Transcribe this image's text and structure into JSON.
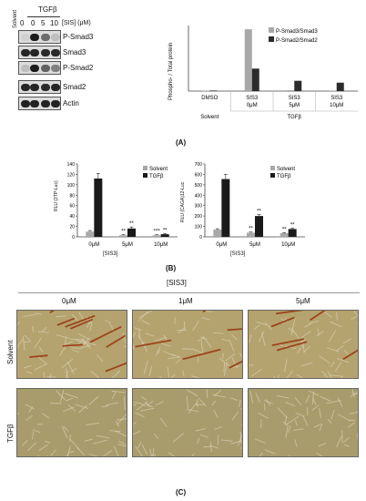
{
  "panelA": {
    "western": {
      "solvent_label": "Solvent",
      "tgf_label": "TGFβ",
      "conc_header": "[SIS] (μM)",
      "lane_values": [
        "0",
        "0",
        "5",
        "10"
      ],
      "markers": [
        "P-Smad3",
        "Smad3",
        "P-Smad2",
        "Smad2",
        "Actin"
      ],
      "band_intensity": [
        [
          0.05,
          0.95,
          0.55,
          0.15
        ],
        [
          0.9,
          0.9,
          0.88,
          0.88
        ],
        [
          0.15,
          0.95,
          0.6,
          0.45
        ],
        [
          0.9,
          0.9,
          0.88,
          0.9
        ],
        [
          0.92,
          0.92,
          0.92,
          0.92
        ]
      ]
    },
    "label": "(A)"
  },
  "panelB": {
    "label": "(B)",
    "conc_footer": "[SIS3]"
  },
  "panelC": {
    "header": "[SIS3]",
    "columns": [
      "0μM",
      "1μM",
      "5μM"
    ],
    "rows": [
      "Solvent",
      "TGFβ"
    ],
    "label": "(C)"
  },
  "chart_data": [
    {
      "type": "bar",
      "ylabel": "Phospho- / Total protein",
      "categories": [
        "DMSO",
        "SIS3 0μM",
        "SIS3 5μM",
        "SIS3 10μM"
      ],
      "groups": [
        "Solvent",
        "TGFβ"
      ],
      "series": [
        {
          "name": "P-Smad3/Smad3",
          "values": [
            0.02,
            3.3,
            0.05,
            0.03
          ],
          "color": "#a8a8a8"
        },
        {
          "name": "P-Smad2/Smad2",
          "values": [
            0.03,
            1.2,
            0.55,
            0.45
          ],
          "color": "#2b2b2b"
        }
      ],
      "ylim": [
        0,
        3.5
      ],
      "legend": "top-right"
    },
    {
      "type": "bar",
      "ylabel": "RLU (3TP-Luc)",
      "categories": [
        "0μM",
        "5μM",
        "10μM"
      ],
      "xlabel": "[SIS3]",
      "y_ticks": [
        "0",
        "20",
        "40",
        "60",
        "80",
        "100",
        "120",
        "140"
      ],
      "ylim": [
        0,
        140
      ],
      "series": [
        {
          "name": "Solvent",
          "values": [
            10,
            3,
            3
          ],
          "errors": [
            2,
            1,
            1
          ],
          "color": "#a8a8a8"
        },
        {
          "name": "TGFβ",
          "values": [
            112,
            16,
            5
          ],
          "errors": [
            10,
            3,
            1
          ],
          "color": "#1a1a1a"
        }
      ],
      "annotations": [
        "**",
        "**",
        "***",
        "**"
      ],
      "legend": "top-right"
    },
    {
      "type": "bar",
      "ylabel": "RLU (CAGA)12-Luc",
      "categories": [
        "0μM",
        "5μM",
        "10μM"
      ],
      "xlabel": "[SIS3]",
      "y_ticks": [
        "0",
        "100",
        "200",
        "300",
        "400",
        "500",
        "600",
        "700"
      ],
      "ylim": [
        0,
        700
      ],
      "series": [
        {
          "name": "Solvent",
          "values": [
            70,
            40,
            35
          ],
          "errors": [
            8,
            6,
            6
          ],
          "color": "#a8a8a8"
        },
        {
          "name": "TGFβ",
          "values": [
            555,
            200,
            75
          ],
          "errors": [
            45,
            15,
            8
          ],
          "color": "#1a1a1a"
        }
      ],
      "annotations": [
        "**",
        "**",
        "**",
        "**"
      ],
      "legend": "top-right"
    }
  ]
}
